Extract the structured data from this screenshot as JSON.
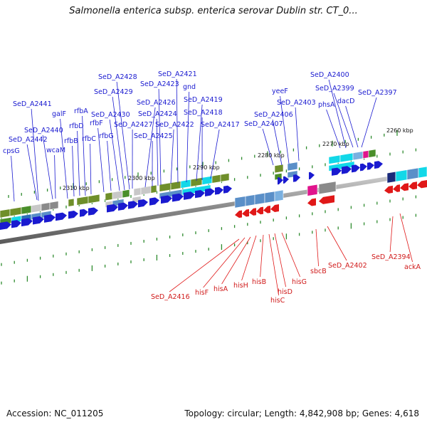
{
  "title": "Salmonella enterica subsp. enterica serovar Dublin str. CT_0...",
  "footer": {
    "accession": "Accession: NC_011205",
    "summary": "Topology: circular; Length: 4,842,908 bp; Genes: 4,618"
  },
  "scale_labels": [
    "2310 kbp",
    "2300 kbp",
    "2290 kbp",
    "2280 kbp",
    "2270 kbp",
    "2260 kbp"
  ],
  "forward_genes": [
    "cpsG",
    "SeD_A2442",
    "SeD_A2441",
    "SeD_A2440",
    "wcaM",
    "galF",
    "rfbB",
    "rfbD",
    "rfbA",
    "rfbC",
    "rfbF",
    "rfbG",
    "SeD_A2430",
    "SeD_A2429",
    "SeD_A2428",
    "SeD_A2427",
    "SeD_A2426",
    "SeD_A2425",
    "SeD_A2424",
    "SeD_A2423",
    "SeD_A2422",
    "SeD_A2421",
    "gnd",
    "SeD_A2419",
    "SeD_A2418",
    "SeD_A2417",
    "SeD_A2407",
    "SeD_A2406",
    "yeeF",
    "SeD_A2403",
    "phsA",
    "SeD_A2400",
    "SeD_A2399",
    "dacD",
    "SeD_A2397"
  ],
  "reverse_genes": [
    "SeD_A2416",
    "hisF",
    "hisA",
    "hisH",
    "hisB",
    "hisC",
    "hisD",
    "hisG",
    "sbcB",
    "SeD_A2402",
    "SeD_A2394",
    "ackA"
  ],
  "colors": {
    "forward_strand": "#1a1ad0",
    "reverse_strand": "#e01818",
    "backbone": "#8a8a8a",
    "tick": "#2e8b2e",
    "cog_olive": "#6f8f2a",
    "cog_cyan": "#12d8e8",
    "cog_steelblue": "#5a8fc8",
    "cog_grey": "#8a8a8a",
    "cog_magenta": "#e0148c"
  }
}
